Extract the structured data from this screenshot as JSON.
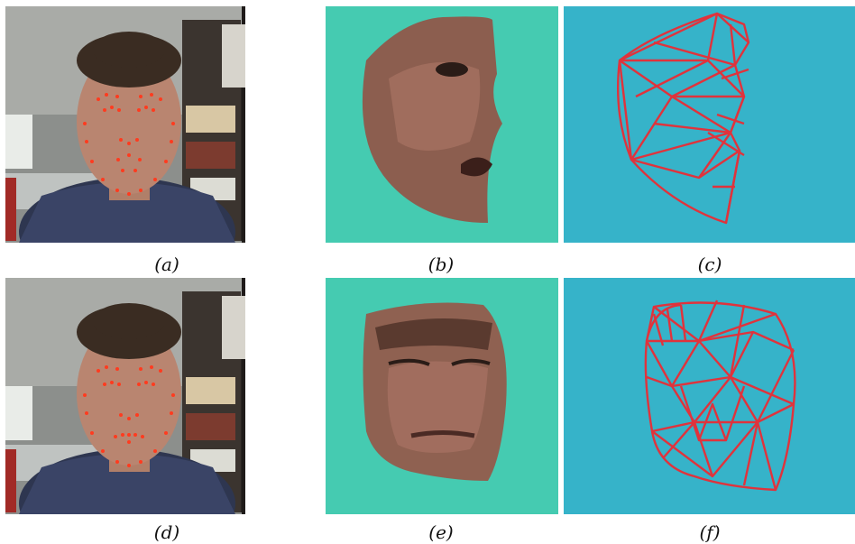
{
  "figure": {
    "captions": [
      "(a)",
      "(b)",
      "(c)",
      "(d)",
      "(e)",
      "(f)"
    ]
  },
  "colors": {
    "texture_background": "#45cbb1",
    "mesh_background": "#36b3c9",
    "mesh_stroke": "#e0333c",
    "landmark_dot": "#ff3b1f"
  }
}
